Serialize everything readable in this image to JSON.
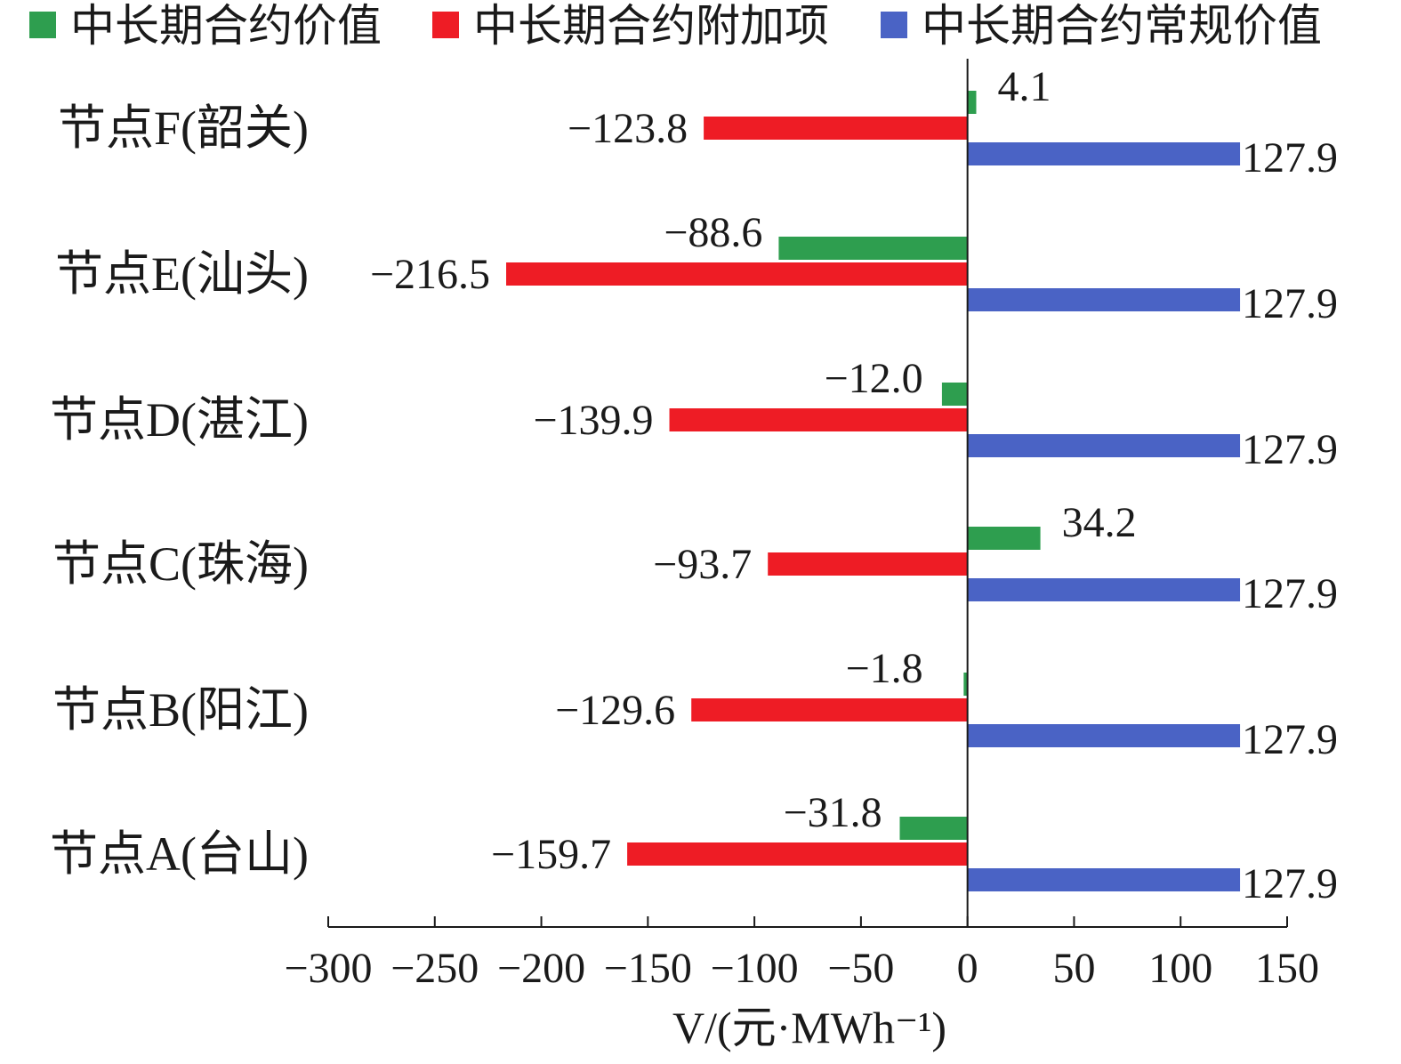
{
  "chart_data": {
    "type": "bar",
    "orientation": "horizontal",
    "categories": [
      "节点F(韶关)",
      "节点E(汕头)",
      "节点D(湛江)",
      "节点C(珠海)",
      "节点B(阳江)",
      "节点A(台山)"
    ],
    "series": [
      {
        "name": "中长期合约价值",
        "color": "#2e9e4f",
        "values": [
          4.1,
          -88.6,
          -12.0,
          34.2,
          -1.8,
          -31.8
        ],
        "labels": [
          "4.1",
          "−88.6",
          "−12.0",
          "34.2",
          "−1.8",
          "−31.8"
        ]
      },
      {
        "name": "中长期合约附加项",
        "color": "#ee1c25",
        "values": [
          -123.8,
          -216.5,
          -139.9,
          -93.7,
          -129.6,
          -159.7
        ],
        "labels": [
          "−123.8",
          "−216.5",
          "−139.9",
          "−93.7",
          "−129.6",
          "−159.7"
        ]
      },
      {
        "name": "中长期合约常规价值",
        "color": "#4a63c5",
        "values": [
          127.9,
          127.9,
          127.9,
          127.9,
          127.9,
          127.9
        ],
        "labels": [
          "127.9",
          "127.9",
          "127.9",
          "127.9",
          "127.9",
          "127.9"
        ]
      }
    ],
    "xlim": [
      -300,
      150
    ],
    "xticks": [
      -300,
      -250,
      -200,
      -150,
      -100,
      -50,
      0,
      50,
      100,
      150
    ],
    "xtick_labels": [
      "−300",
      "−250",
      "−200",
      "−150",
      "−100",
      "−50",
      "0",
      "50",
      "100",
      "150"
    ],
    "xlabel": "V/(元·MWh⁻¹)",
    "legend_position": "top",
    "grid": false
  }
}
